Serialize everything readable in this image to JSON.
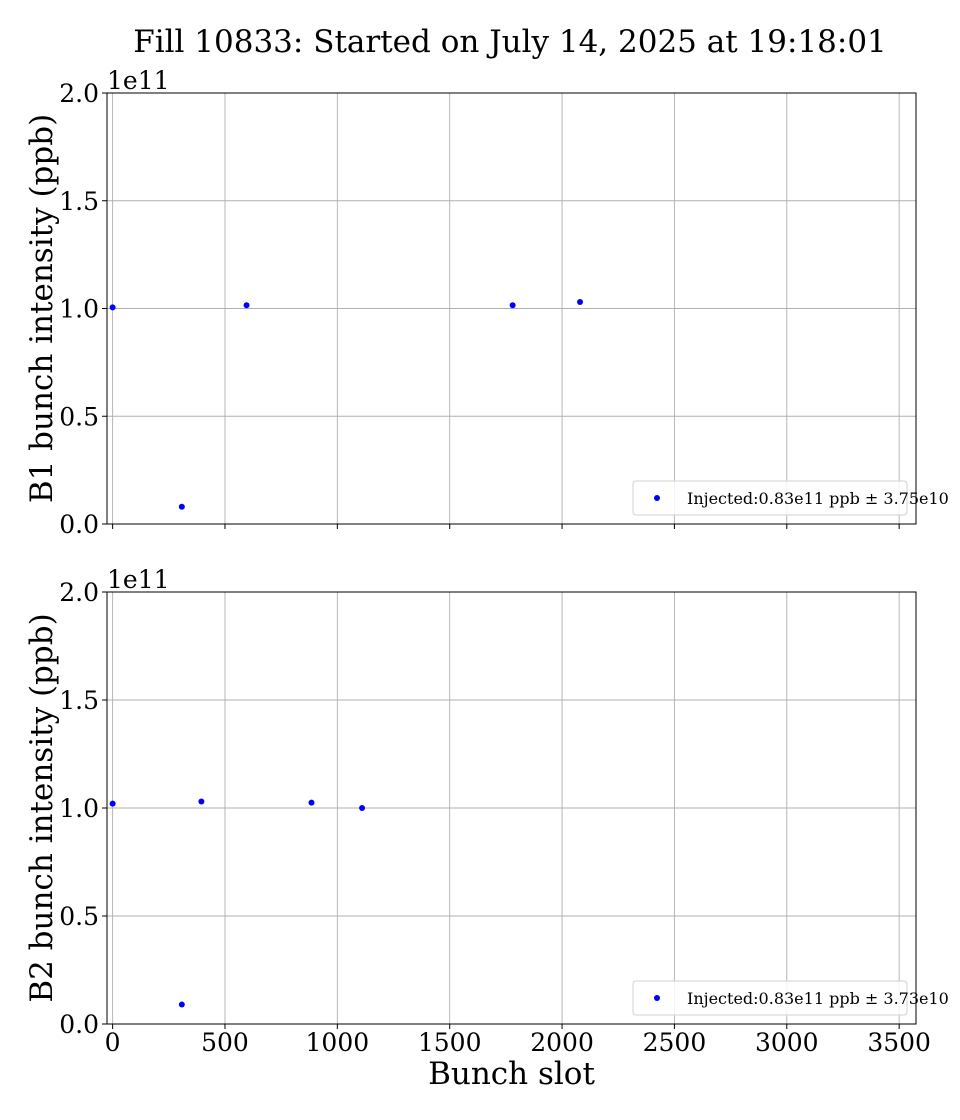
{
  "title": "Fill 10833: Started on July 14, 2025 at 19:18:01",
  "chart_data": [
    {
      "type": "scatter",
      "ylabel": "B1 bunch intensity (ppb)",
      "xlabel": "",
      "y_offset_label": "1e11",
      "xlim": [
        -25,
        3575
      ],
      "ylim": [
        0,
        2.0
      ],
      "x_ticks": [
        0,
        500,
        1000,
        1500,
        2000,
        2500,
        3000,
        3500
      ],
      "y_ticks": [
        0.0,
        0.5,
        1.0,
        1.5,
        2.0
      ],
      "y_tick_labels": [
        "0.0",
        "0.5",
        "1.0",
        "1.5",
        "2.0"
      ],
      "x_tick_labels_visible": false,
      "grid": true,
      "legend_position": "lower-right",
      "color": "#0000ff",
      "series": [
        {
          "name": "Injected:0.83e11 ppb ± 3.75e10",
          "points": [
            {
              "x": 0,
              "y": 1.005
            },
            {
              "x": 308,
              "y": 0.08
            },
            {
              "x": 596,
              "y": 1.015
            },
            {
              "x": 1780,
              "y": 1.015
            },
            {
              "x": 2080,
              "y": 1.03
            }
          ]
        }
      ]
    },
    {
      "type": "scatter",
      "ylabel": "B2 bunch intensity (ppb)",
      "xlabel": "Bunch slot",
      "y_offset_label": "1e11",
      "xlim": [
        -25,
        3575
      ],
      "ylim": [
        0,
        2.0
      ],
      "x_ticks": [
        0,
        500,
        1000,
        1500,
        2000,
        2500,
        3000,
        3500
      ],
      "x_tick_labels": [
        "0",
        "500",
        "1000",
        "1500",
        "2000",
        "2500",
        "3000",
        "3500"
      ],
      "y_ticks": [
        0.0,
        0.5,
        1.0,
        1.5,
        2.0
      ],
      "y_tick_labels": [
        "0.0",
        "0.5",
        "1.0",
        "1.5",
        "2.0"
      ],
      "x_tick_labels_visible": true,
      "grid": true,
      "legend_position": "lower-right",
      "color": "#0000ff",
      "series": [
        {
          "name": "Injected:0.83e11 ppb ± 3.73e10",
          "points": [
            {
              "x": 0,
              "y": 1.02
            },
            {
              "x": 308,
              "y": 0.09
            },
            {
              "x": 395,
              "y": 1.03
            },
            {
              "x": 885,
              "y": 1.025
            },
            {
              "x": 1110,
              "y": 1.0
            }
          ]
        }
      ]
    }
  ]
}
